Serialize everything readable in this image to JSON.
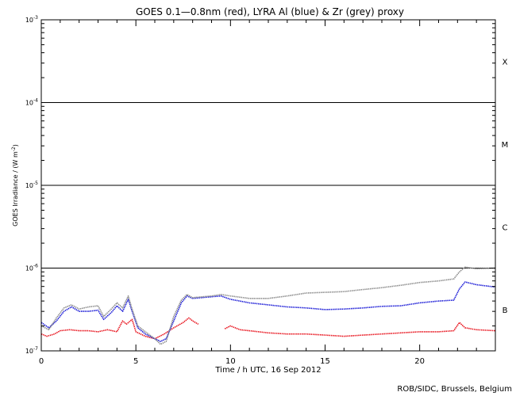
{
  "chart_data": {
    "type": "line",
    "title": "GOES 0.1—0.8nm (red), LYRA Al (blue) & Zr (grey) proxy",
    "xlabel": "Time / h UTC, 16 Sep 2012",
    "ylabel": "GOES Irradiance / (W m",
    "ylabel_sup": "-2",
    "ylabel_close": ")",
    "credit": "ROB/SIDC, Brussels, Belgium",
    "x_scale": "linear",
    "y_scale": "log",
    "xlim": [
      0,
      24
    ],
    "ylim": [
      1e-07,
      0.001
    ],
    "x_ticks": [
      0,
      5,
      10,
      15,
      20
    ],
    "x_tick_labels": [
      "0",
      "5",
      "10",
      "15",
      "20"
    ],
    "y_ticks": [
      {
        "value": 1e-07,
        "base": "10",
        "exp": "-7"
      },
      {
        "value": 1e-06,
        "base": "10",
        "exp": "-6"
      },
      {
        "value": 1e-05,
        "base": "10",
        "exp": "-5"
      },
      {
        "value": 0.0001,
        "base": "10",
        "exp": "-4"
      },
      {
        "value": 0.001,
        "base": "10",
        "exp": "-3"
      }
    ],
    "flare_class_lines": [
      1e-06,
      1e-05,
      0.0001
    ],
    "flare_classes": [
      {
        "label": "B",
        "value": 3.16e-07
      },
      {
        "label": "C",
        "value": 3.16e-06
      },
      {
        "label": "M",
        "value": 3.16e-05
      },
      {
        "label": "X",
        "value": 0.000316
      }
    ],
    "series": [
      {
        "name": "GOES 0.1-0.8nm",
        "color": "#e8141e",
        "segments": [
          [
            [
              0.0,
              1.6e-07
            ],
            [
              0.3,
              1.5e-07
            ],
            [
              0.7,
              1.6e-07
            ],
            [
              1.0,
              1.75e-07
            ],
            [
              1.5,
              1.8e-07
            ],
            [
              2.0,
              1.75e-07
            ],
            [
              2.5,
              1.75e-07
            ],
            [
              3.0,
              1.7e-07
            ],
            [
              3.5,
              1.8e-07
            ],
            [
              4.0,
              1.7e-07
            ],
            [
              4.3,
              2.3e-07
            ],
            [
              4.5,
              2.1e-07
            ],
            [
              4.8,
              2.4e-07
            ],
            [
              5.0,
              1.7e-07
            ],
            [
              5.5,
              1.5e-07
            ],
            [
              6.0,
              1.4e-07
            ],
            [
              6.5,
              1.6e-07
            ],
            [
              7.0,
              1.9e-07
            ],
            [
              7.5,
              2.2e-07
            ],
            [
              7.8,
              2.5e-07
            ],
            [
              8.0,
              2.3e-07
            ],
            [
              8.3,
              2.1e-07
            ]
          ],
          [
            [
              9.7,
              1.85e-07
            ],
            [
              10.0,
              2e-07
            ],
            [
              10.5,
              1.8e-07
            ],
            [
              11.0,
              1.75e-07
            ],
            [
              12.0,
              1.65e-07
            ],
            [
              13.0,
              1.6e-07
            ],
            [
              14.0,
              1.6e-07
            ],
            [
              15.0,
              1.55e-07
            ],
            [
              16.0,
              1.5e-07
            ],
            [
              17.0,
              1.55e-07
            ],
            [
              18.0,
              1.6e-07
            ],
            [
              19.0,
              1.65e-07
            ],
            [
              20.0,
              1.7e-07
            ],
            [
              21.0,
              1.7e-07
            ],
            [
              21.8,
              1.75e-07
            ],
            [
              22.1,
              2.2e-07
            ],
            [
              22.4,
              1.9e-07
            ],
            [
              23.0,
              1.8e-07
            ],
            [
              24.0,
              1.75e-07
            ]
          ]
        ]
      },
      {
        "name": "LYRA Al proxy",
        "color": "#1a1ad6",
        "segments": [
          [
            [
              0.0,
              2.2e-07
            ],
            [
              0.4,
              1.9e-07
            ],
            [
              0.8,
              2.3e-07
            ],
            [
              1.2,
              3e-07
            ],
            [
              1.6,
              3.4e-07
            ],
            [
              2.0,
              3e-07
            ],
            [
              2.5,
              3e-07
            ],
            [
              3.0,
              3.1e-07
            ],
            [
              3.3,
              2.4e-07
            ],
            [
              3.7,
              2.9e-07
            ],
            [
              4.0,
              3.5e-07
            ],
            [
              4.3,
              3e-07
            ],
            [
              4.6,
              4.2e-07
            ],
            [
              4.8,
              3e-07
            ],
            [
              5.1,
              1.9e-07
            ],
            [
              5.5,
              1.6e-07
            ],
            [
              6.0,
              1.4e-07
            ],
            [
              6.3,
              1.3e-07
            ],
            [
              6.6,
              1.4e-07
            ],
            [
              7.0,
              2.3e-07
            ],
            [
              7.4,
              3.8e-07
            ],
            [
              7.7,
              4.6e-07
            ],
            [
              8.0,
              4.3e-07
            ],
            [
              9.0,
              4.5e-07
            ],
            [
              9.5,
              4.6e-07
            ],
            [
              10.0,
              4.2e-07
            ],
            [
              11.0,
              3.8e-07
            ],
            [
              12.0,
              3.6e-07
            ],
            [
              13.0,
              3.4e-07
            ],
            [
              14.0,
              3.3e-07
            ],
            [
              15.0,
              3.15e-07
            ],
            [
              16.0,
              3.2e-07
            ],
            [
              17.0,
              3.3e-07
            ],
            [
              18.0,
              3.45e-07
            ],
            [
              19.0,
              3.5e-07
            ],
            [
              20.0,
              3.8e-07
            ],
            [
              21.0,
              4e-07
            ],
            [
              21.8,
              4.1e-07
            ],
            [
              22.1,
              5.6e-07
            ],
            [
              22.4,
              6.8e-07
            ],
            [
              23.0,
              6.3e-07
            ],
            [
              24.0,
              5.9e-07
            ]
          ]
        ]
      },
      {
        "name": "LYRA Zr proxy",
        "color": "#8c8c8c",
        "segments": [
          [
            [
              0.0,
              2e-07
            ],
            [
              0.4,
              1.8e-07
            ],
            [
              0.8,
              2.5e-07
            ],
            [
              1.2,
              3.3e-07
            ],
            [
              1.6,
              3.6e-07
            ],
            [
              2.0,
              3.2e-07
            ],
            [
              2.5,
              3.4e-07
            ],
            [
              3.0,
              3.5e-07
            ],
            [
              3.3,
              2.6e-07
            ],
            [
              3.7,
              3.2e-07
            ],
            [
              4.0,
              3.8e-07
            ],
            [
              4.3,
              3.3e-07
            ],
            [
              4.6,
              4.6e-07
            ],
            [
              4.8,
              3.2e-07
            ],
            [
              5.1,
              2e-07
            ],
            [
              5.5,
              1.7e-07
            ],
            [
              6.0,
              1.4e-07
            ],
            [
              6.3,
              1.2e-07
            ],
            [
              6.6,
              1.3e-07
            ],
            [
              7.0,
              2.6e-07
            ],
            [
              7.4,
              4.1e-07
            ],
            [
              7.7,
              4.8e-07
            ],
            [
              8.0,
              4.4e-07
            ],
            [
              9.0,
              4.6e-07
            ],
            [
              9.5,
              4.8e-07
            ],
            [
              10.0,
              4.6e-07
            ],
            [
              11.0,
              4.3e-07
            ],
            [
              12.0,
              4.3e-07
            ],
            [
              13.0,
              4.6e-07
            ],
            [
              14.0,
              5e-07
            ],
            [
              15.0,
              5.1e-07
            ],
            [
              16.0,
              5.2e-07
            ],
            [
              17.0,
              5.5e-07
            ],
            [
              18.0,
              5.8e-07
            ],
            [
              19.0,
              6.2e-07
            ],
            [
              20.0,
              6.7e-07
            ],
            [
              21.0,
              7e-07
            ],
            [
              21.8,
              7.4e-07
            ],
            [
              22.1,
              9e-07
            ],
            [
              22.4,
              1.03e-06
            ],
            [
              23.0,
              9.8e-07
            ],
            [
              24.0,
              1e-06
            ]
          ]
        ]
      }
    ]
  }
}
